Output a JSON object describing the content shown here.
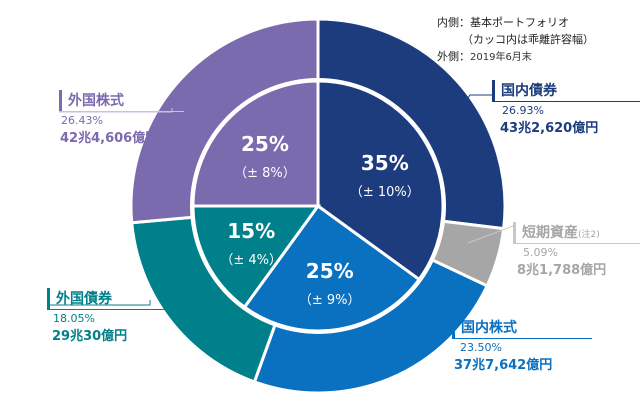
{
  "notes": {
    "line1": "内側：基本ポートフォリオ",
    "line2": "（カッコ内は乖離許容幅）",
    "line3_prefix": "外側：",
    "line3_date": "2019年6月末"
  },
  "chart_data": {
    "type": "pie",
    "outer": {
      "label": "2019年6月末",
      "slices": [
        {
          "name": "国内債券",
          "percent": 26.93,
          "percent_label": "26.93%",
          "amount": "43兆2,620億円",
          "color": "#1c3c7d"
        },
        {
          "name": "短期資産",
          "note": "(注2)",
          "percent": 5.09,
          "percent_label": "5.09%",
          "amount": "8兆1,788億円",
          "color": "#a6a6a6"
        },
        {
          "name": "国内株式",
          "percent": 23.5,
          "percent_label": "23.50%",
          "amount": "37兆7,642億円",
          "color": "#0a70c0"
        },
        {
          "name": "外国債券",
          "percent": 18.05,
          "percent_label": "18.05%",
          "amount": "29兆30億円",
          "color": "#00808b"
        },
        {
          "name": "外国株式",
          "percent": 26.43,
          "percent_label": "26.43%",
          "amount": "42兆4,606億円",
          "color": "#7a6aae"
        }
      ]
    },
    "inner": {
      "label": "基本ポートフォリオ",
      "slices": [
        {
          "name": "国内債券",
          "percent": 35,
          "percent_label": "35%",
          "range": "（± 10%）",
          "color": "#1c3c7d"
        },
        {
          "name": "国内株式",
          "percent": 25,
          "percent_label": "25%",
          "range": "（± 9%）",
          "color": "#0a70c0"
        },
        {
          "name": "外国債券",
          "percent": 15,
          "percent_label": "15%",
          "range": "（± 4%）",
          "color": "#00808b"
        },
        {
          "name": "外国株式",
          "percent": 25,
          "percent_label": "25%",
          "range": "（± 8%）",
          "color": "#7a6aae"
        }
      ]
    }
  }
}
